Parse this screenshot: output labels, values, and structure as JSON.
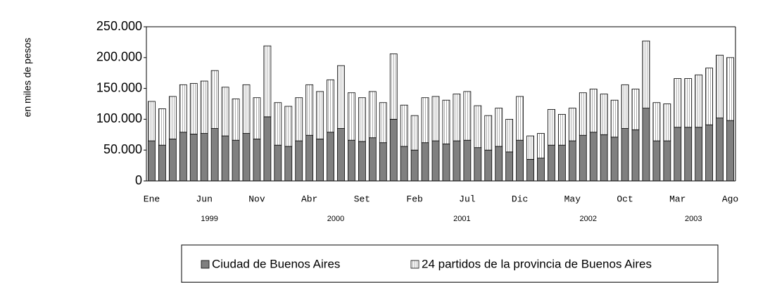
{
  "chart_data": {
    "type": "stacked-bar",
    "y_label": "en miles de pesos",
    "categories": [
      "Ene",
      null,
      null,
      null,
      null,
      "Jun",
      null,
      null,
      null,
      null,
      "Nov",
      null,
      null,
      null,
      null,
      "Abr",
      null,
      null,
      null,
      null,
      "Set",
      null,
      null,
      null,
      null,
      "Feb",
      null,
      null,
      null,
      null,
      "Jul",
      null,
      null,
      null,
      null,
      "Dic",
      null,
      null,
      null,
      null,
      "May",
      null,
      null,
      null,
      null,
      "Oct",
      null,
      null,
      null,
      null,
      "Mar",
      null,
      null,
      null,
      null,
      "Ago"
    ],
    "years": [
      "1999",
      "2000",
      "2001",
      "2002",
      "2003"
    ],
    "series": [
      {
        "name": "Ciudad de Buenos Aires",
        "color": "#808080",
        "values": [
          65000,
          58000,
          68000,
          79000,
          76000,
          77000,
          85000,
          73000,
          66000,
          77000,
          68000,
          104000,
          58000,
          56000,
          65000,
          74000,
          68000,
          79000,
          85000,
          66000,
          64000,
          70000,
          62000,
          100000,
          56000,
          50000,
          62000,
          65000,
          60000,
          65000,
          66000,
          54000,
          50000,
          56000,
          47000,
          66000,
          35000,
          37000,
          58000,
          58000,
          65000,
          74000,
          79000,
          75000,
          71000,
          85000,
          83000,
          118000,
          65000,
          65000,
          87000,
          87000,
          87000,
          91000,
          102000,
          98000
        ]
      },
      {
        "name": "24 partidos de la provincia de Buenos Aires",
        "color": "#ffffff",
        "values": [
          64000,
          59000,
          69000,
          77000,
          82000,
          85000,
          94000,
          79000,
          67000,
          79000,
          67000,
          115000,
          69000,
          65000,
          70000,
          82000,
          77000,
          85000,
          102000,
          77000,
          71000,
          75000,
          65000,
          106000,
          67000,
          56000,
          73000,
          72000,
          71000,
          76000,
          79000,
          68000,
          56000,
          62000,
          53000,
          71000,
          38000,
          40000,
          58000,
          50000,
          53000,
          69000,
          70000,
          66000,
          60000,
          71000,
          66000,
          109000,
          62000,
          60000,
          79000,
          79000,
          85000,
          92000,
          102000,
          102000
        ]
      }
    ],
    "ylim": [
      0,
      250000
    ],
    "yticks": [
      0,
      {
        "value": 50000,
        "label": "50.000"
      },
      {
        "value": 100000,
        "label": "100.000"
      },
      {
        "value": 150000,
        "label": "150.000"
      },
      {
        "value": 200000,
        "label": "200.000"
      },
      {
        "value": 250000,
        "label": "250.000"
      }
    ]
  }
}
